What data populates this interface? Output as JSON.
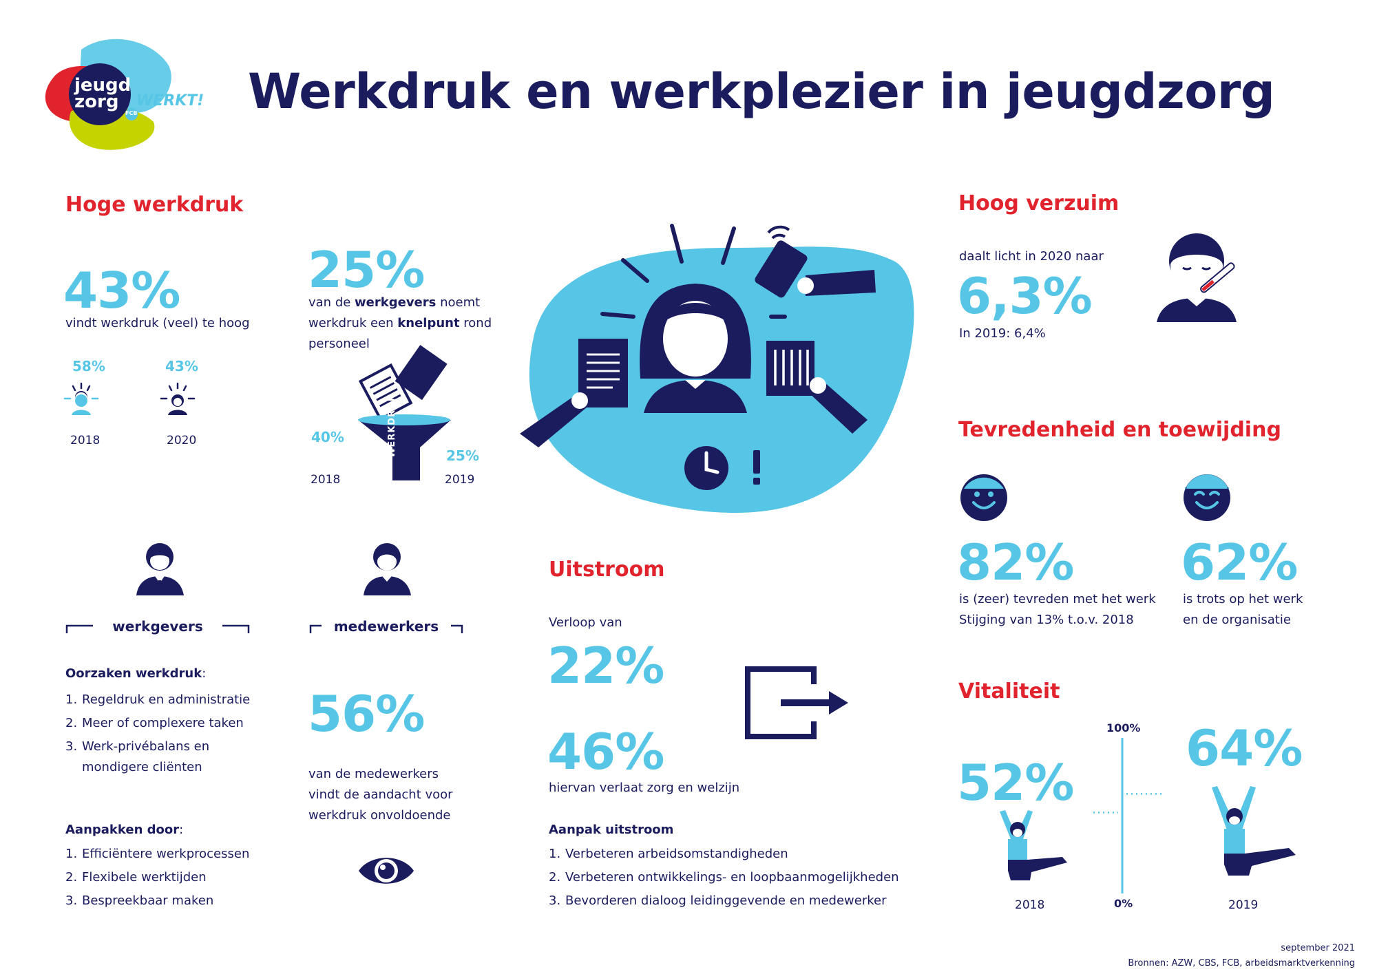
{
  "logo": {
    "line1": "jeugd",
    "line2": "zorg",
    "tag": "WERKT!",
    "badge": "FCB"
  },
  "title": "Werkdruk en werkplezier in jeugdzorg",
  "hoge_werkdruk": {
    "heading": "Hoge werkdruk",
    "main_pct": "43%",
    "main_text": "vindt werkdruk (veel) te hoog",
    "history": [
      {
        "pct": "58%",
        "year": "2018"
      },
      {
        "pct": "43%",
        "year": "2020"
      }
    ]
  },
  "werkgevers_knelpunt": {
    "pct": "25%",
    "text_a": "van de ",
    "text_b": "werkgevers",
    "text_c": " noemt",
    "text_d": "werkdruk een ",
    "text_e": "knelpunt",
    "text_f": " rond",
    "text_g": "personeel",
    "funnel_label": "WERKDRUK",
    "left_pct": "40%",
    "left_year": "2018",
    "right_pct": "25%",
    "right_year": "2019"
  },
  "werkgevers": {
    "label": "werkgevers",
    "oorzaken_title": "Oorzaken werkdruk",
    "oorzaken_colon": ":",
    "oorzaken": [
      {
        "n": "1.",
        "t": "Regeldruk en administratie"
      },
      {
        "n": "2.",
        "t": "Meer of complexere taken"
      },
      {
        "n": "3.",
        "t": "Werk-privébalans en"
      }
    ],
    "oorzaken_cont": "mondigere cliënten",
    "aanpak_title": "Aanpakken door",
    "aanpak_colon": ":",
    "aanpak": [
      {
        "n": "1.",
        "t": "Efficiëntere werkprocessen"
      },
      {
        "n": "2.",
        "t": "Flexibele werktijden"
      },
      {
        "n": "3.",
        "t": "Bespreekbaar maken"
      }
    ]
  },
  "medewerkers": {
    "label": "medewerkers",
    "pct": "56%",
    "text1": "van de medewerkers",
    "text2": "vindt de aandacht voor",
    "text3": "werkdruk onvoldoende"
  },
  "uitstroom": {
    "heading": "Uitstroom",
    "verloop": "Verloop van",
    "pct1": "22%",
    "pct2": "46%",
    "pct2_text": "hiervan verlaat zorg en welzijn",
    "aanpak_title": "Aanpak uitstroom",
    "aanpak": [
      {
        "n": "1.",
        "t": "Verbeteren arbeidsomstandigheden"
      },
      {
        "n": "2.",
        "t": "Verbeteren ontwikkelings- en loopbaanmogelijkheden"
      },
      {
        "n": "3.",
        "t": "Bevorderen dialoog leidinggevende en medewerker"
      }
    ]
  },
  "verzuim": {
    "heading": "Hoog verzuim",
    "intro": "daalt licht in 2020 naar",
    "pct": "6,3%",
    "prev": "In 2019: 6,4%"
  },
  "tevredenheid": {
    "heading": "Tevredenheid en toewijding",
    "items": [
      {
        "pct": "82%",
        "line1": "is (zeer) tevreden met het werk",
        "line2": "Stijging van 13% t.o.v. 2018"
      },
      {
        "pct": "62%",
        "line1": "is trots op het werk",
        "line2": "en de organisatie"
      }
    ]
  },
  "vitaliteit": {
    "heading": "Vitaliteit",
    "scale_top": "100%",
    "scale_bottom": "0%",
    "items": [
      {
        "pct": "52%",
        "year": "2018",
        "value": 52
      },
      {
        "pct": "64%",
        "year": "2019",
        "value": 64
      }
    ]
  },
  "footer": {
    "date": "september 2021",
    "sources": "Bronnen: AZW, CBS, FCB, arbeidsmarktverkenning"
  },
  "colors": {
    "navy": "#1b1c5e",
    "cyan": "#57c6e6",
    "red": "#e1232d",
    "lime": "#c5d300"
  }
}
